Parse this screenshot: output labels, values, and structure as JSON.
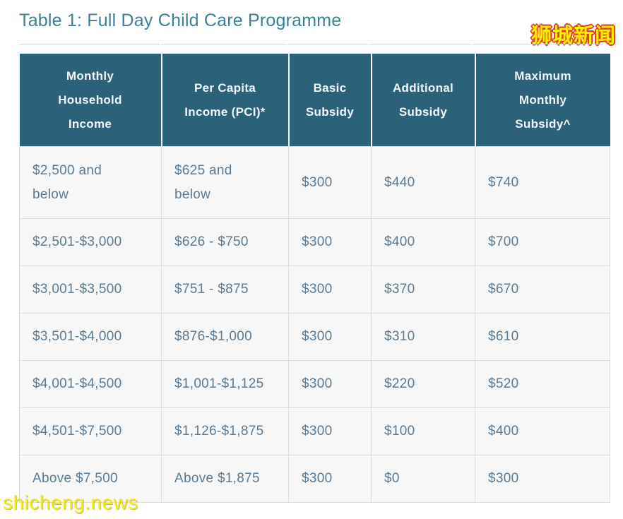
{
  "page": {
    "title": "Table 1: Full Day Child Care Programme",
    "site_logo": "狮城新闻",
    "watermark": "shicheng.news"
  },
  "colors": {
    "title_text": "#3a8096",
    "header_bg": "#2b627a",
    "header_text": "#f4f7f8",
    "body_bg": "#f7f7f7",
    "body_text": "#5b7b93",
    "cell_border": "#dcdcdc",
    "logo_fill": "#ffef00",
    "logo_outline": "#e33b1e",
    "watermark_fill": "#f6ee00"
  },
  "chart_data": {
    "type": "table",
    "title": "Table 1: Full Day Child Care Programme",
    "columns": [
      "Monthly Household Income",
      "Per Capita Income (PCI)*",
      "Basic Subsidy",
      "Additional Subsidy",
      "Maximum Monthly Subsidy^"
    ],
    "rows": [
      [
        "$2,500 and below",
        "$625 and below",
        "$300",
        "$440",
        "$740"
      ],
      [
        "$2,501-$3,000",
        "$626 - $750",
        "$300",
        "$400",
        "$700"
      ],
      [
        "$3,001-$3,500",
        "$751 - $875",
        "$300",
        "$370",
        "$670"
      ],
      [
        "$3,501-$4,000",
        "$876-$1,000",
        "$300",
        "$310",
        "$610"
      ],
      [
        "$4,001-$4,500",
        "$1,001-$1,125",
        "$300",
        "$220",
        "$520"
      ],
      [
        "$4,501-$7,500",
        "$1,126-$1,875",
        "$300",
        "$100",
        "$400"
      ],
      [
        "Above $7,500",
        "Above $1,875",
        "$300",
        "$0",
        "$300"
      ]
    ]
  }
}
